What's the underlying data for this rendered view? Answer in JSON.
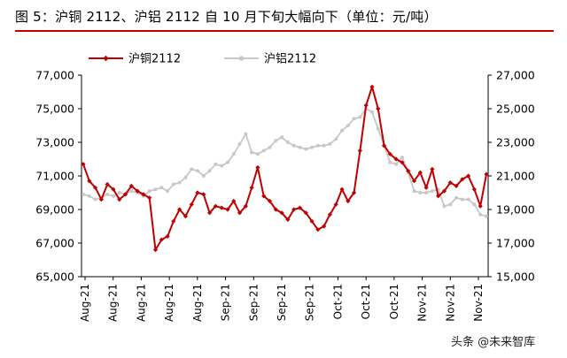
{
  "header": {
    "title": "图 5：沪铜 2112、沪铝 2112 自 10 月下旬大幅向下（单位：元/吨）",
    "rule_color": "#c00000"
  },
  "watermark": "头条 @未来智库",
  "chart_data": {
    "type": "line",
    "title": "图 5：沪铜 2112、沪铝 2112 自 10 月下旬大幅向下（单位：元/吨）",
    "xlabel": "",
    "ylabel": "",
    "y_left": {
      "min": 65000,
      "max": 77000,
      "ticks": [
        "65,000",
        "67,000",
        "69,000",
        "71,000",
        "73,000",
        "75,000",
        "77,000"
      ]
    },
    "y_right": {
      "min": 15000,
      "max": 27000,
      "ticks": [
        "15,000",
        "17,000",
        "19,000",
        "21,000",
        "23,000",
        "25,000",
        "27,000"
      ]
    },
    "x_tick_labels": [
      "Aug-21",
      "Aug-21",
      "Aug-21",
      "Aug-21",
      "Aug-21",
      "Sep-21",
      "Sep-21",
      "Sep-21",
      "Sep-21",
      "Oct-21",
      "Oct-21",
      "Oct-21",
      "Nov-21",
      "Nov-21",
      "Nov-21"
    ],
    "legend_position": "top-left",
    "grid": false,
    "series": [
      {
        "name": "沪铜2112",
        "axis": "left",
        "color": "#c00000",
        "marker": "diamond",
        "values": [
          71700,
          70700,
          70300,
          69600,
          70500,
          70200,
          69600,
          69900,
          70400,
          70100,
          69900,
          69700,
          66600,
          67200,
          67400,
          68300,
          69000,
          68600,
          69300,
          70000,
          69900,
          68800,
          69200,
          69100,
          69000,
          69500,
          68800,
          69200,
          70300,
          71500,
          69800,
          69500,
          69000,
          68800,
          68400,
          69000,
          69100,
          68800,
          68300,
          67800,
          68000,
          68700,
          69300,
          70200,
          69500,
          70000,
          72500,
          75200,
          76300,
          75000,
          72800,
          72300,
          72000,
          71800,
          71300,
          70700,
          71200,
          70300,
          71400,
          69800,
          70100,
          70600,
          70400,
          70800,
          71000,
          70200,
          69200,
          71100
        ]
      },
      {
        "name": "沪铝2112",
        "axis": "right",
        "color": "#c8c8c8",
        "marker": "circle",
        "values": [
          19900,
          19800,
          19600,
          19700,
          19900,
          19800,
          20000,
          19900,
          20100,
          20000,
          19800,
          20100,
          20200,
          20300,
          20100,
          20500,
          20600,
          20900,
          21400,
          21300,
          21000,
          21300,
          21700,
          21600,
          21800,
          22300,
          22900,
          23500,
          22400,
          22300,
          22500,
          22700,
          23100,
          23300,
          23000,
          22800,
          22700,
          22600,
          22700,
          22800,
          22800,
          22900,
          23200,
          23700,
          24000,
          24400,
          24500,
          25000,
          24800,
          23800,
          22800,
          21800,
          21700,
          22100,
          21200,
          20100,
          20000,
          20000,
          20100,
          20200,
          19200,
          19300,
          19700,
          19600,
          19600,
          19300,
          18700,
          18600
        ]
      }
    ]
  }
}
